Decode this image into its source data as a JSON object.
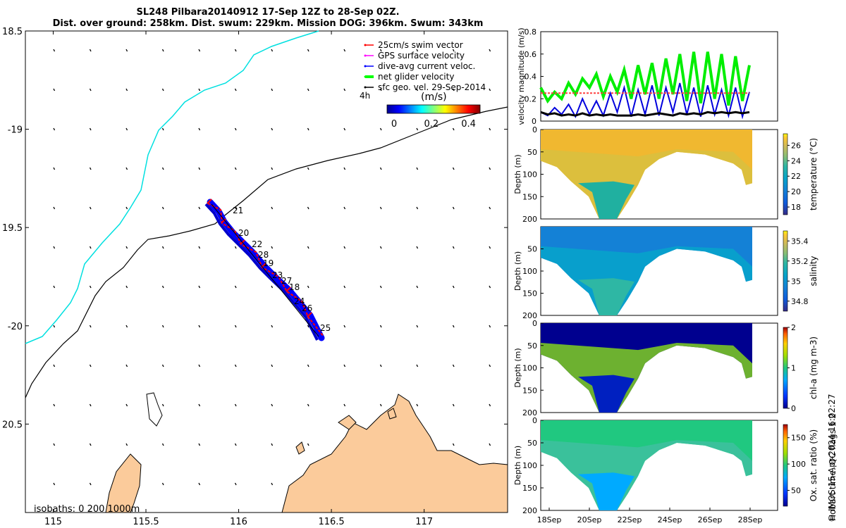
{
  "title": {
    "line1": "SL248 Pilbara20140912 17-Sep 12Z to 28-Sep 02Z.",
    "line2": "Dist. over ground: 258km. Dist. swum: 229km. Mission DOG: 396km. Swum: 343km"
  },
  "map": {
    "lon_ticks": [
      "115",
      "115.5",
      "116",
      "116.5",
      "117"
    ],
    "lat_ticks": [
      "18.5",
      "-19",
      "19.5",
      "-20",
      "20.5"
    ],
    "lon_range": [
      114.85,
      117.45
    ],
    "lat_range": [
      -20.95,
      -18.5
    ],
    "legend": [
      {
        "label": "25cm/s swim vector",
        "color": "#ff0000"
      },
      {
        "label": "GPS surface velocity",
        "color": "#ff00ff"
      },
      {
        "label": "dive-avg current veloc.",
        "color": "#0000ff"
      },
      {
        "label": "net glider velocity",
        "color": "#00ff00"
      },
      {
        "label": "sfc geo. vel. 29-Sep-2014",
        "color": "#000000"
      }
    ],
    "colorbar": {
      "label": "(m/s)",
      "side_label": "4h",
      "ticks": [
        "0",
        "0.2",
        "0.4"
      ],
      "range": [
        0,
        0.5
      ]
    },
    "day_labels": [
      "21",
      "20",
      "22",
      "28",
      "19",
      "23",
      "27",
      "18",
      "24",
      "26",
      "25"
    ],
    "isobath_label": "isobaths: 0   200  1000m",
    "colors": {
      "land": "#fbcb9b",
      "coast_isobath": "#00e0e0",
      "deep_isobath": "#000000",
      "track": "#0000ff",
      "swim": "#ff0000"
    }
  },
  "chart_data": [
    {
      "type": "line",
      "ylabel": "velocity magnitude (m/s)",
      "ylim": [
        0,
        0.8
      ],
      "yticks": [
        "0",
        "0.2",
        "0.4",
        "0.6",
        "0.8"
      ],
      "series": [
        {
          "name": "net glider velocity",
          "color": "#00ee00",
          "values": [
            0.3,
            0.18,
            0.26,
            0.2,
            0.34,
            0.24,
            0.38,
            0.3,
            0.42,
            0.22,
            0.4,
            0.26,
            0.46,
            0.2,
            0.5,
            0.24,
            0.52,
            0.2,
            0.56,
            0.24,
            0.6,
            0.18,
            0.62,
            0.16,
            0.62,
            0.2,
            0.6,
            0.14,
            0.58,
            0.18,
            0.5
          ]
        },
        {
          "name": "dive-avg current veloc.",
          "color": "#0000dd",
          "values": [
            0.08,
            0.05,
            0.12,
            0.06,
            0.15,
            0.04,
            0.2,
            0.06,
            0.18,
            0.05,
            0.25,
            0.08,
            0.3,
            0.04,
            0.28,
            0.06,
            0.32,
            0.05,
            0.3,
            0.08,
            0.34,
            0.06,
            0.3,
            0.04,
            0.32,
            0.06,
            0.28,
            0.05,
            0.3,
            0.04,
            0.26
          ]
        },
        {
          "name": "25cm/s swim vector",
          "color": "#ff4040",
          "values": [
            0.25,
            0.25,
            0.25,
            0.25,
            0.25,
            0.25,
            0.25,
            0.25,
            0.25,
            0.25,
            0.25,
            0.25,
            0.25,
            0.25,
            0.25,
            0.25,
            0.25,
            0.25,
            0.25,
            0.25,
            0.25,
            0.25,
            0.25,
            0.25,
            0.25,
            0.25,
            0.25,
            0.25,
            0.25,
            0.25,
            0.25
          ]
        },
        {
          "name": "sfc geo. vel. 29-Sep-2014",
          "color": "#000000",
          "values": [
            0.08,
            0.06,
            0.07,
            0.05,
            0.06,
            0.05,
            0.07,
            0.05,
            0.06,
            0.05,
            0.06,
            0.05,
            0.05,
            0.05,
            0.06,
            0.05,
            0.06,
            0.07,
            0.06,
            0.05,
            0.07,
            0.06,
            0.07,
            0.06,
            0.08,
            0.07,
            0.08,
            0.07,
            0.08,
            0.07,
            0.08
          ]
        }
      ]
    },
    {
      "type": "heatmap",
      "ylabel": "Depth (m)",
      "clabel": "temperature (°C)",
      "yticks": [
        "0",
        "50",
        "100",
        "150",
        "200"
      ],
      "cticks": [
        "18",
        "20",
        "22",
        "24",
        "26"
      ],
      "crange": [
        17,
        27.5
      ]
    },
    {
      "type": "heatmap",
      "ylabel": "Depth (m)",
      "clabel": "salinity",
      "yticks": [
        "50",
        "100",
        "150",
        "200"
      ],
      "cticks": [
        "34.8",
        "35",
        "35.2",
        "35.4"
      ],
      "crange": [
        34.7,
        35.5
      ]
    },
    {
      "type": "heatmap",
      "ylabel": "Depth (m)",
      "clabel": "chl-a (mg m-3)",
      "yticks": [
        "0",
        "50",
        "100",
        "150",
        "200"
      ],
      "cticks": [
        "0",
        "1",
        "2"
      ],
      "crange": [
        0,
        2
      ]
    },
    {
      "type": "heatmap",
      "ylabel": "Depth (m)",
      "clabel": "Ox. sat. ratio (%)",
      "yticks": [
        "0",
        "50",
        "100",
        "150",
        "200"
      ],
      "cticks": [
        "50",
        "100",
        "150"
      ],
      "crange": [
        20,
        175
      ]
    }
  ],
  "time_axis": {
    "ticks": [
      "18Sep",
      "20Sep",
      "22Sep",
      "24Sep",
      "26Sep",
      "28Sep"
    ]
  },
  "qc_label": "Hobart time. QC flags 1  2",
  "credit": "© IMOS 15-Apr-2024 16:02:27"
}
